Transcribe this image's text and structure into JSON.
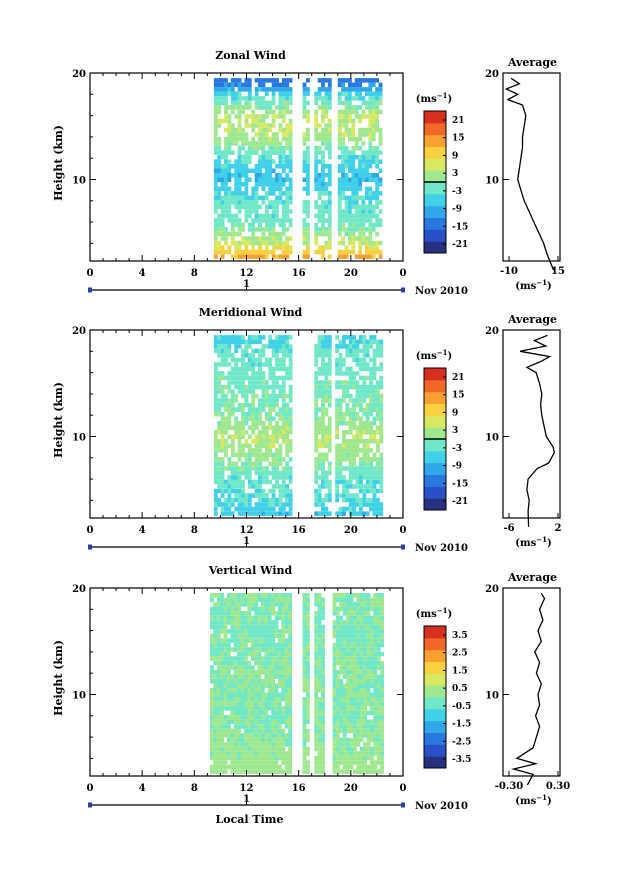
{
  "panels": [
    {
      "id": "zonal",
      "title": "Zonal Wind",
      "ylabel": "Height (km)",
      "yticks": [
        "20",
        "10"
      ],
      "xticks": [
        "0",
        "4",
        "8",
        "12",
        "16",
        "20",
        "0"
      ],
      "date_label": "1",
      "month_label": "Nov 2010",
      "colorbar": {
        "unit": "(ms-1)",
        "ticks": [
          "21",
          "15",
          "9",
          "3",
          "-3",
          "-9",
          "-15",
          "-21"
        ]
      },
      "average": {
        "title": "Average",
        "yticks": [
          "20",
          "10"
        ],
        "xticks": [
          "-10",
          "15"
        ],
        "xunit": "(ms-1)"
      }
    },
    {
      "id": "meridional",
      "title": "Meridional Wind",
      "ylabel": "Height (km)",
      "yticks": [
        "20",
        "10"
      ],
      "xticks": [
        "0",
        "4",
        "8",
        "12",
        "16",
        "20",
        "0"
      ],
      "date_label": "1",
      "month_label": "Nov 2010",
      "colorbar": {
        "unit": "(ms-1)",
        "ticks": [
          "21",
          "15",
          "9",
          "3",
          "-3",
          "-9",
          "-15",
          "-21"
        ]
      },
      "average": {
        "title": "Average",
        "yticks": [
          "20",
          "10"
        ],
        "xticks": [
          "-6",
          "2"
        ],
        "xunit": "(ms-1)"
      }
    },
    {
      "id": "vertical",
      "title": "Vertical Wind",
      "ylabel": "Height (km)",
      "yticks": [
        "20",
        "10"
      ],
      "xticks": [
        "0",
        "4",
        "8",
        "12",
        "16",
        "20",
        "0"
      ],
      "date_label": "1",
      "month_label": "Nov 2010",
      "colorbar": {
        "unit": "(ms-1)",
        "ticks": [
          "3.5",
          "2.5",
          "1.5",
          "0.5",
          "-0.5",
          "-1.5",
          "-2.5",
          "-3.5"
        ]
      },
      "average": {
        "title": "Average",
        "yticks": [
          "20",
          "10"
        ],
        "xticks": [
          "-0.30",
          "0.30"
        ],
        "xunit": "(ms-1)"
      }
    }
  ],
  "xlabel": "Local Time",
  "colors": {
    "colormap": [
      "#283080",
      "#2850c8",
      "#2878e0",
      "#30a8e8",
      "#40d0e8",
      "#70e8c8",
      "#a0e890",
      "#d8e860",
      "#f8d040",
      "#f8a030",
      "#f06828",
      "#d83020"
    ]
  },
  "chart_data": [
    {
      "type": "heatmap",
      "title": "Zonal Wind",
      "xlabel": "",
      "ylabel": "Height (km)",
      "xlim": [
        0,
        24
      ],
      "ylim": [
        1,
        20
      ],
      "x_ticks": [
        0,
        4,
        8,
        12,
        16,
        20,
        24
      ],
      "colorbar_range": [
        -24,
        24
      ],
      "colorbar_unit": "ms-1",
      "data_columns_local_time": [
        [
          9.5,
          15.4
        ],
        [
          16.3,
          16.6
        ],
        [
          17.2,
          18.4
        ],
        [
          19.0,
          22.2
        ]
      ],
      "profile_by_height": [
        {
          "height_km": 2,
          "value": 18
        },
        {
          "height_km": 4,
          "value": 5
        },
        {
          "height_km": 6,
          "value": -2
        },
        {
          "height_km": 8,
          "value": -3
        },
        {
          "height_km": 10,
          "value": -8
        },
        {
          "height_km": 12,
          "value": -4
        },
        {
          "height_km": 14,
          "value": 3
        },
        {
          "height_km": 16,
          "value": 4
        },
        {
          "height_km": 18,
          "value": -5
        },
        {
          "height_km": 19,
          "value": -14
        }
      ],
      "average_profile": {
        "x_range": [
          -15,
          20
        ],
        "points": [
          {
            "height_km": 1.5,
            "value": 16
          },
          {
            "height_km": 3,
            "value": 12
          },
          {
            "height_km": 4,
            "value": 10
          },
          {
            "height_km": 5,
            "value": 7
          },
          {
            "height_km": 6,
            "value": 4
          },
          {
            "height_km": 7,
            "value": 1
          },
          {
            "height_km": 8,
            "value": -2
          },
          {
            "height_km": 9,
            "value": -4
          },
          {
            "height_km": 10,
            "value": -6
          },
          {
            "height_km": 11,
            "value": -5
          },
          {
            "height_km": 12,
            "value": -4
          },
          {
            "height_km": 13,
            "value": -3
          },
          {
            "height_km": 14,
            "value": -3
          },
          {
            "height_km": 15,
            "value": -2
          },
          {
            "height_km": 16,
            "value": -1
          },
          {
            "height_km": 17,
            "value": -3
          },
          {
            "height_km": 17.5,
            "value": -12
          },
          {
            "height_km": 18,
            "value": -6
          },
          {
            "height_km": 18.5,
            "value": -13
          },
          {
            "height_km": 19,
            "value": -5
          },
          {
            "height_km": 19.5,
            "value": -10
          }
        ]
      }
    },
    {
      "type": "heatmap",
      "title": "Meridional Wind",
      "xlabel": "",
      "ylabel": "Height (km)",
      "xlim": [
        0,
        24
      ],
      "ylim": [
        1,
        20
      ],
      "x_ticks": [
        0,
        4,
        8,
        12,
        16,
        20,
        24
      ],
      "colorbar_range": [
        -24,
        24
      ],
      "colorbar_unit": "ms-1",
      "data_columns_local_time": [
        [
          9.5,
          15.4
        ],
        [
          17.2,
          18.4
        ],
        [
          18.8,
          22.2
        ]
      ],
      "profile_by_height": [
        {
          "height_km": 2,
          "value": -8
        },
        {
          "height_km": 4,
          "value": -4
        },
        {
          "height_km": 6,
          "value": -3
        },
        {
          "height_km": 8,
          "value": 1
        },
        {
          "height_km": 10,
          "value": 4
        },
        {
          "height_km": 12,
          "value": 0
        },
        {
          "height_km": 14,
          "value": -1
        },
        {
          "height_km": 16,
          "value": -2
        },
        {
          "height_km": 18,
          "value": -3
        },
        {
          "height_km": 19,
          "value": -5
        }
      ],
      "average_profile": {
        "x_range": [
          -7,
          3
        ],
        "points": [
          {
            "height_km": 1.5,
            "value": -2.5
          },
          {
            "height_km": 3,
            "value": -2.6
          },
          {
            "height_km": 4,
            "value": -2.4
          },
          {
            "height_km": 5,
            "value": -2.8
          },
          {
            "height_km": 6,
            "value": -2.6
          },
          {
            "height_km": 7,
            "value": -1.0
          },
          {
            "height_km": 7.5,
            "value": 1.0
          },
          {
            "height_km": 8,
            "value": 1.5
          },
          {
            "height_km": 8.5,
            "value": 2.0
          },
          {
            "height_km": 9,
            "value": 1.8
          },
          {
            "height_km": 10,
            "value": 0.6
          },
          {
            "height_km": 11,
            "value": 0.2
          },
          {
            "height_km": 12,
            "value": -0.2
          },
          {
            "height_km": 13,
            "value": -0.4
          },
          {
            "height_km": 14,
            "value": -0.2
          },
          {
            "height_km": 15,
            "value": -0.6
          },
          {
            "height_km": 16,
            "value": -1.2
          },
          {
            "height_km": 16.5,
            "value": -2.8
          },
          {
            "height_km": 17,
            "value": -0.5
          },
          {
            "height_km": 17.5,
            "value": 1.2
          },
          {
            "height_km": 18,
            "value": -4.0
          },
          {
            "height_km": 18.5,
            "value": 0.5
          },
          {
            "height_km": 19,
            "value": -1.5
          },
          {
            "height_km": 19.5,
            "value": 0.8
          }
        ]
      }
    },
    {
      "type": "heatmap",
      "title": "Vertical Wind",
      "xlabel": "Local Time",
      "ylabel": "Height (km)",
      "xlim": [
        0,
        24
      ],
      "ylim": [
        1,
        20
      ],
      "x_ticks": [
        0,
        4,
        8,
        12,
        16,
        20,
        24
      ],
      "colorbar_range": [
        -4,
        4
      ],
      "colorbar_unit": "ms-1",
      "data_columns_local_time": [
        [
          9.2,
          15.2
        ],
        [
          16.3,
          16.7
        ],
        [
          17.2,
          17.8
        ],
        [
          18.6,
          22.4
        ]
      ],
      "profile_by_height": [
        {
          "height_km": 2,
          "value": 0.3
        },
        {
          "height_km": 5,
          "value": 0.1
        },
        {
          "height_km": 8,
          "value": 0.0
        },
        {
          "height_km": 12,
          "value": 0.0
        },
        {
          "height_km": 16,
          "value": -0.1
        },
        {
          "height_km": 19,
          "value": 0.0
        }
      ],
      "average_profile": {
        "x_range": [
          -0.35,
          0.35
        ],
        "points": [
          {
            "height_km": 1.5,
            "value": -0.05
          },
          {
            "height_km": 2.5,
            "value": 0.02
          },
          {
            "height_km": 3,
            "value": -0.22
          },
          {
            "height_km": 3.5,
            "value": 0.05
          },
          {
            "height_km": 4,
            "value": -0.18
          },
          {
            "height_km": 5,
            "value": 0.02
          },
          {
            "height_km": 6,
            "value": 0.06
          },
          {
            "height_km": 7,
            "value": 0.1
          },
          {
            "height_km": 8,
            "value": 0.05
          },
          {
            "height_km": 9,
            "value": 0.1
          },
          {
            "height_km": 10,
            "value": 0.08
          },
          {
            "height_km": 11,
            "value": 0.12
          },
          {
            "height_km": 12,
            "value": 0.06
          },
          {
            "height_km": 13,
            "value": 0.1
          },
          {
            "height_km": 14,
            "value": 0.04
          },
          {
            "height_km": 15,
            "value": 0.12
          },
          {
            "height_km": 16,
            "value": 0.08
          },
          {
            "height_km": 17,
            "value": 0.14
          },
          {
            "height_km": 18,
            "value": 0.1
          },
          {
            "height_km": 19,
            "value": 0.16
          },
          {
            "height_km": 19.5,
            "value": 0.12
          }
        ]
      }
    }
  ]
}
